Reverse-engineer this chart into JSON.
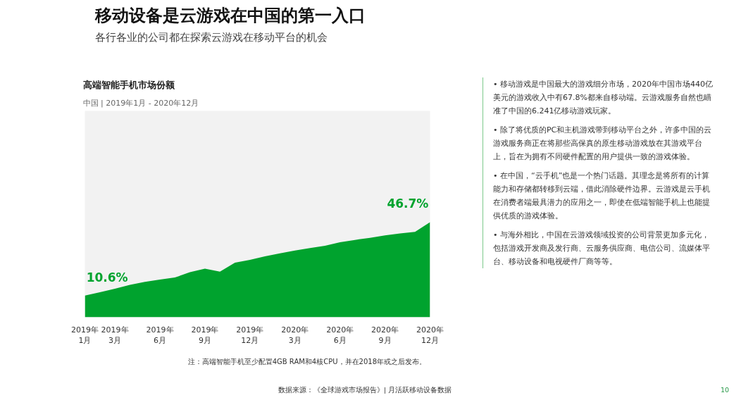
{
  "chart_data": {
    "type": "area",
    "title": "高端智能手机市场份额",
    "subtitle": "中国 | 2019年1月 - 2020年12月",
    "categories": [
      "2019年\n1月",
      null,
      "2019年\n3月",
      null,
      null,
      "2019年\n6月",
      null,
      null,
      "2019年\n9月",
      null,
      null,
      "2019年\n12月",
      null,
      null,
      "2020年\n3月",
      null,
      null,
      "2020年\n6月",
      null,
      null,
      "2020年\n9月",
      null,
      null,
      "2020年\n12月"
    ],
    "tick_labels": "x",
    "series": [
      {
        "color": "#00a32e",
        "values": [
          10.6,
          12.3,
          14.0,
          15.9,
          17.4,
          18.5,
          19.5,
          22.1,
          23.9,
          22.4,
          26.8,
          28.2,
          29.9,
          31.4,
          32.8,
          34.0,
          35.1,
          36.8,
          38.0,
          39.0,
          40.2,
          41.2,
          41.9,
          46.7
        ],
        "value_labels": [
          "10.6%",
          null,
          null,
          null,
          null,
          null,
          null,
          null,
          null,
          null,
          null,
          null,
          null,
          null,
          null,
          null,
          null,
          null,
          null,
          null,
          null,
          null,
          null,
          "46.7%"
        ]
      }
    ],
    "annotations": [
      "移动设备是云游戏在中国的第一入口",
      "各行各业的公司都在探索云游戏在移动平台的机会",
      "• 移动游戏是中国最大的游戏细分市场，2020年中国市场440亿美元的游戏收入中有67.8%都来自移动端。云游戏服务自然也瞄准了中国的6.241亿移动游戏玩家。",
      "• 除了将优质的PC和主机游戏带到移动平台之外，许多中国的云游戏服务商正在将那些高保真的原生移动游戏放在其游戏平台上，旨在为拥有不同硬件配置的用户提供一致的游戏体验。",
      "• 在中国，“云手机”也是一个热门话题。其理念是将所有的计算能力和存储都转移到云端，借此消除硬件边界。云游戏是云手机在消费者端最具潜力的应用之一，即使在低端智能手机上也能提供优质的游戏体验。",
      "• 与海外相比，中国在云游戏领域投资的公司背景更加多元化，包括游戏开发商及发行商、云服务供应商、电信公司、流媒体平台、移动设备和电视硬件厂商等等。",
      "注：高端智能手机至少配置4GB RAM和4核CPU，并在2018年或之后发布。",
      "数据来源：《全球游戏市场报告》| 月活跃移动设备数据",
      "10"
    ]
  }
}
